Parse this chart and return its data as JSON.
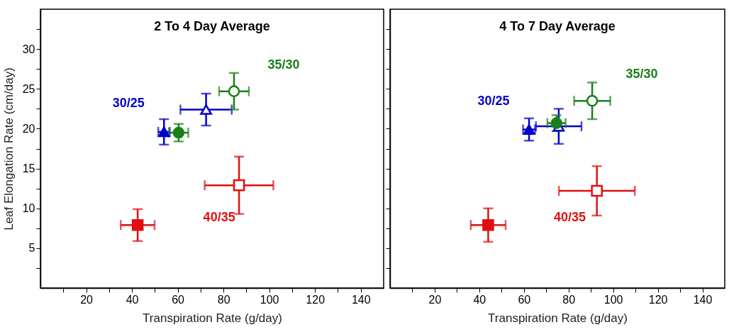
{
  "chart_data": [
    {
      "type": "scatter",
      "title": "2 To 4 Day Average",
      "xlabel": "Transpiration Rate (g/day)",
      "ylabel": "Leaf Elongation Rate (cm/day)",
      "xlim": [
        0,
        150
      ],
      "ylim": [
        0,
        35
      ],
      "xticks": [
        {
          "value": 10,
          "label": null
        },
        20,
        {
          "value": 30,
          "label": null
        },
        40,
        {
          "value": 50,
          "label": null
        },
        60,
        {
          "value": 70,
          "label": null
        },
        80,
        {
          "value": 90,
          "label": null
        },
        100,
        {
          "value": 110,
          "label": null
        },
        120,
        {
          "value": 130,
          "label": null
        },
        140
      ],
      "yticks": [
        {
          "value": 2.5,
          "label": null
        },
        5,
        {
          "value": 7.5,
          "label": null
        },
        10,
        {
          "value": 12.5,
          "label": null
        },
        15,
        {
          "value": 17.5,
          "label": null
        },
        20,
        {
          "value": 22.5,
          "label": null
        },
        25,
        {
          "value": 27.5,
          "label": null
        },
        30,
        {
          "value": 32.5,
          "label": null
        }
      ],
      "grid": false,
      "series": [
        {
          "name": "30/25",
          "color": "#0000cc",
          "marker": "triangle",
          "x": [
            54,
            72.4
          ],
          "values": [
            19.6,
            22.4
          ],
          "colors": [
            "#0000cc",
            "#ffffff"
          ],
          "xerrors": [
            2.5,
            11.2
          ],
          "errors": [
            1.6,
            2
          ]
        },
        {
          "name": "35/30",
          "color": "#1a7f1a",
          "marker": "circle",
          "x": [
            60.4,
            84.6
          ],
          "values": [
            19.5,
            24.7
          ],
          "colors": [
            "#1a7f1a",
            "#ffffff"
          ],
          "xerrors": [
            4.2,
            6.5
          ],
          "errors": [
            1.1,
            2.3
          ]
        },
        {
          "name": "40/35",
          "color": "#e01010",
          "marker": "square",
          "x": [
            42.5,
            86.8
          ],
          "values": [
            7.9,
            12.9
          ],
          "colors": [
            "#e01010",
            "#ffffff"
          ],
          "xerrors": [
            7.4,
            15
          ],
          "errors": [
            2,
            3.6
          ]
        }
      ]
    },
    {
      "type": "scatter",
      "title": "4 To 7 Day Average",
      "xlabel": "Transpiration Rate (g/day)",
      "xlim": [
        0,
        150
      ],
      "ylim": [
        0,
        35
      ],
      "tick_labels": "x",
      "xticks": [
        {
          "value": 10,
          "label": null
        },
        20,
        {
          "value": 30,
          "label": null
        },
        40,
        {
          "value": 50,
          "label": null
        },
        60,
        {
          "value": 70,
          "label": null
        },
        80,
        {
          "value": 90,
          "label": null
        },
        100,
        {
          "value": 110,
          "label": null
        },
        120,
        {
          "value": 130,
          "label": null
        },
        140
      ],
      "yticks": [
        {
          "value": 2.5,
          "label": null
        },
        5,
        {
          "value": 7.5,
          "label": null
        },
        10,
        {
          "value": 12.5,
          "label": null
        },
        15,
        {
          "value": 17.5,
          "label": null
        },
        20,
        {
          "value": 22.5,
          "label": null
        },
        25,
        {
          "value": 27.5,
          "label": null
        },
        30,
        {
          "value": 32.5,
          "label": null
        }
      ],
      "grid": false,
      "series": [
        {
          "name": "30/25",
          "color": "#0000cc",
          "marker": "triangle",
          "x": [
            62.3,
            75.6
          ],
          "values": [
            19.9,
            20.3
          ],
          "colors": [
            "#0000cc",
            "#ffffff"
          ],
          "xerrors": [
            2.7,
            10.2
          ],
          "errors": [
            1.4,
            2.2
          ]
        },
        {
          "name": "35/30",
          "color": "#1a7f1a",
          "marker": "circle",
          "x": [
            74.6,
            90.6
          ],
          "values": [
            20.7,
            23.5
          ],
          "colors": [
            "#1a7f1a",
            "#ffffff"
          ],
          "xerrors": [
            4.1,
            8.1
          ],
          "errors": [
            1,
            2.3
          ]
        },
        {
          "name": "40/35",
          "color": "#e01010",
          "marker": "square",
          "x": [
            44,
            92.7
          ],
          "values": [
            7.9,
            12.2
          ],
          "colors": [
            "#e01010",
            "#ffffff"
          ],
          "xerrors": [
            7.8,
            17
          ],
          "errors": [
            2.1,
            3.1
          ]
        }
      ]
    }
  ]
}
